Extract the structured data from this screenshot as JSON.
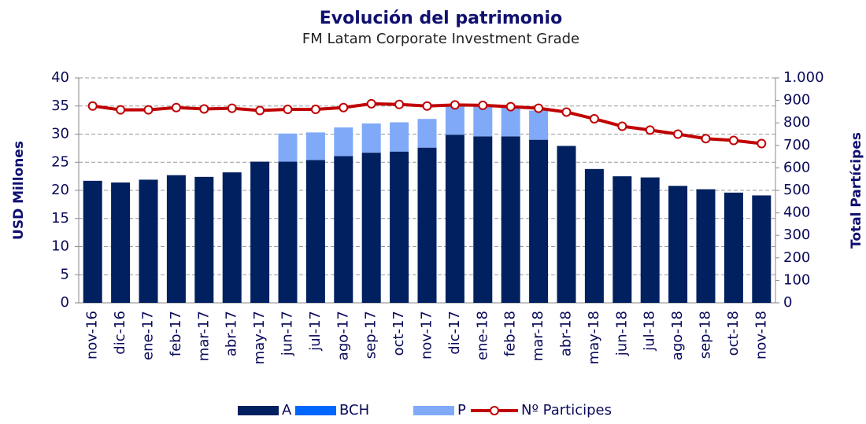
{
  "chart_data": {
    "type": "bar",
    "title": "Evolución del patrimonio",
    "subtitle": "FM Latam Corporate Investment Grade",
    "y_label": "USD Millones",
    "y2_label": "Total Partícipes",
    "stacked": true,
    "grid": true,
    "legend": "bottom",
    "categories": [
      "nov-16",
      "dic-16",
      "ene-17",
      "feb-17",
      "mar-17",
      "abr-17",
      "may-17",
      "jun-17",
      "jul-17",
      "ago-17",
      "sep-17",
      "oct-17",
      "nov-17",
      "dic-17",
      "ene-18",
      "feb-18",
      "mar-18",
      "abr-18",
      "may-18",
      "jun-18",
      "jul-18",
      "ago-18",
      "sep-18",
      "oct-18",
      "nov-18"
    ],
    "series": [
      {
        "name": "A",
        "type": "bar",
        "color": "#002060",
        "values": [
          21.7,
          21.4,
          21.9,
          22.7,
          22.4,
          23.2,
          25.1,
          25.1,
          25.4,
          26.1,
          26.7,
          26.9,
          27.6,
          29.9,
          29.6,
          29.6,
          29.0,
          27.9,
          23.8,
          22.5,
          22.3,
          20.8,
          20.2,
          19.6,
          19.1
        ]
      },
      {
        "name": "BCH",
        "type": "bar",
        "color": "#0066ff",
        "values": [
          0,
          0,
          0,
          0,
          0,
          0,
          0,
          0,
          0,
          0,
          0,
          0,
          0,
          0,
          0,
          0,
          0,
          0,
          0,
          0,
          0,
          0,
          0,
          0,
          0
        ]
      },
      {
        "name": "P",
        "type": "bar",
        "color": "#80aaf8",
        "values": [
          0,
          0,
          0,
          0,
          0,
          0,
          0,
          5.0,
          4.9,
          5.1,
          5.2,
          5.2,
          5.1,
          5.2,
          5.4,
          5.2,
          5.2,
          0,
          0,
          0,
          0,
          0,
          0,
          0,
          0
        ]
      },
      {
        "name": "Nº Participes",
        "type": "line",
        "axis": "y2",
        "color": "#c00000",
        "values": [
          875,
          858,
          858,
          868,
          862,
          865,
          855,
          860,
          860,
          868,
          885,
          882,
          875,
          880,
          878,
          872,
          865,
          848,
          818,
          785,
          768,
          750,
          730,
          722,
          708
        ]
      }
    ],
    "ylim": [
      0,
      40
    ],
    "yticks": [
      0,
      5,
      10,
      15,
      20,
      25,
      30,
      35,
      40
    ],
    "y2lim": [
      0,
      1000
    ],
    "y2ticks": [
      0,
      100,
      200,
      300,
      400,
      500,
      600,
      700,
      800,
      900,
      {
        "value": 1000,
        "label": "1.000"
      }
    ]
  }
}
